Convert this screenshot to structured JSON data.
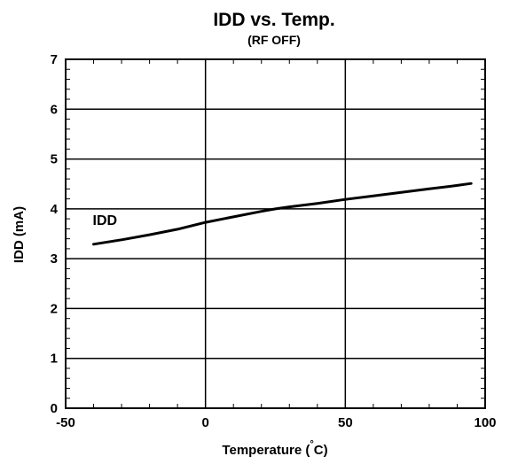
{
  "chart_data": {
    "type": "line",
    "title": "IDD vs. Temp.",
    "subtitle": "(RF OFF)",
    "xlabel": "Temperature (",
    "xlabel_degree": "°",
    "xlabel_unit": "C)",
    "ylabel": "IDD (mA)",
    "xlim": [
      -50,
      100
    ],
    "ylim": [
      0,
      7
    ],
    "x_ticks": [
      -50,
      0,
      50,
      100
    ],
    "y_ticks": [
      0,
      1,
      2,
      3,
      4,
      5,
      6,
      7
    ],
    "x_minor_step": 10,
    "y_minor_step": 0.2,
    "grid": true,
    "series": [
      {
        "name": "IDD",
        "x": [
          -40,
          -30,
          -20,
          -10,
          0,
          10,
          20,
          25,
          30,
          40,
          50,
          60,
          70,
          80,
          90,
          95
        ],
        "y": [
          3.29,
          3.38,
          3.48,
          3.59,
          3.73,
          3.84,
          3.95,
          4.0,
          4.04,
          4.11,
          4.19,
          4.26,
          4.33,
          4.4,
          4.47,
          4.51
        ]
      }
    ]
  }
}
